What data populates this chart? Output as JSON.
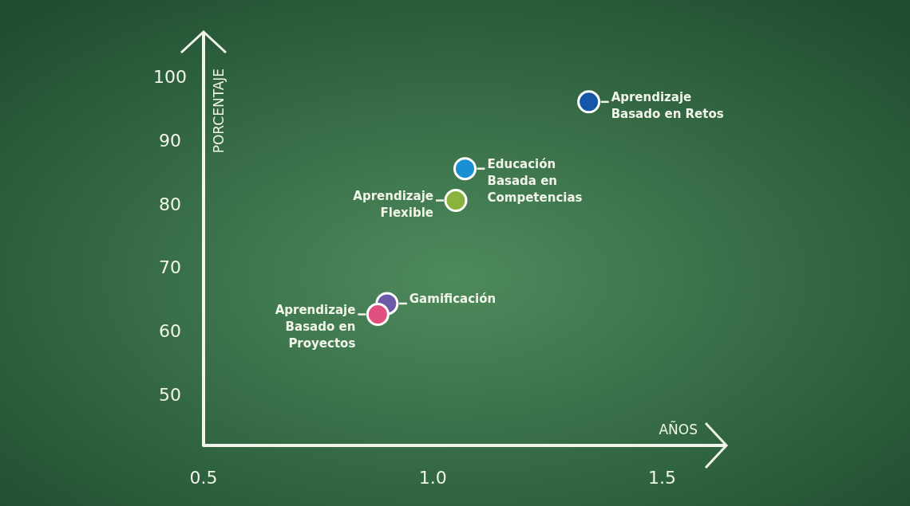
{
  "chart_data": {
    "type": "scatter",
    "xlabel": "AÑOS",
    "ylabel": "PORCENTAJE",
    "xlim": [
      0.5,
      1.64
    ],
    "ylim": [
      42,
      107
    ],
    "xticks": [
      {
        "value": 0.5,
        "label": "0.5"
      },
      {
        "value": 1.0,
        "label": "1.0"
      },
      {
        "value": 1.5,
        "label": "1.5"
      }
    ],
    "yticks": [
      50,
      60,
      70,
      80,
      90,
      100
    ],
    "marker": "circle",
    "grid": false,
    "series": [
      {
        "name": "Aprendizaje Basado en Retos",
        "color": "#1656a8",
        "x": [
          1.34
        ],
        "values": [
          96
        ]
      },
      {
        "name": "Educación Basada en Competencias",
        "color": "#1a8fd4",
        "x": [
          1.07
        ],
        "values": [
          85.5
        ]
      },
      {
        "name": "Aprendizaje Flexible",
        "color": "#8ab33e",
        "x": [
          1.05
        ],
        "values": [
          80.5
        ]
      },
      {
        "name": "Gamificación",
        "color": "#6a5aa8",
        "x": [
          0.9
        ],
        "values": [
          64.3
        ]
      },
      {
        "name": "Aprendizaje Basado en Proyectos",
        "color": "#e0507e",
        "x": [
          0.88
        ],
        "values": [
          62.6
        ]
      }
    ]
  }
}
